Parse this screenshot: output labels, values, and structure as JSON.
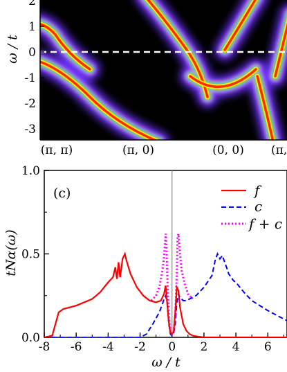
{
  "top_panel": {
    "type": "heatmap",
    "ylabel": "ω / t",
    "ylim": [
      -3,
      2
    ],
    "y_ticks": [
      "2",
      "1",
      "0",
      "-1",
      "-2",
      "-3"
    ],
    "x_tick_labels": [
      "(π, π)",
      "(π, 0)",
      "(0, 0)",
      "(π,"
    ],
    "zero_line": "dashed white at ω = 0",
    "colors": {
      "background": "#000000",
      "ridge": "#ff2a00",
      "halo": "#7a3cff"
    }
  },
  "chart_data": {
    "type": "line",
    "panel_label": "(c)",
    "xlabel": "ω / t",
    "ylabel": "tNα(ω)",
    "xlim": [
      -8,
      7.2
    ],
    "ylim": [
      0,
      1
    ],
    "x_ticks": [
      "-8",
      "-6",
      "-4",
      "-2",
      "0",
      "2",
      "4",
      "6"
    ],
    "y_ticks": [
      "0.0",
      "0.5",
      "1.0"
    ],
    "legend": [
      "f",
      "c",
      "f + c"
    ],
    "legend_position": "top-right",
    "series": [
      {
        "name": "f",
        "color": "#ff0000",
        "style": "solid",
        "x": [
          -8,
          -7.5,
          -7.3,
          -7.1,
          -6.8,
          -6,
          -5,
          -4.5,
          -4,
          -3.7,
          -3.55,
          -3.45,
          -3.35,
          -3.25,
          -3.1,
          -2.95,
          -2.85,
          -2.6,
          -2.2,
          -1.8,
          -1.4,
          -1.0,
          -0.7,
          -0.5,
          -0.4,
          -0.3,
          -0.2,
          -0.1,
          0,
          0.1,
          0.2,
          0.3,
          0.4,
          0.5,
          0.7,
          0.9,
          1.1,
          1.3,
          1.6,
          2,
          3,
          4,
          5,
          6,
          7.2
        ],
        "y": [
          0,
          0.01,
          0.08,
          0.15,
          0.17,
          0.19,
          0.23,
          0.27,
          0.33,
          0.36,
          0.42,
          0.35,
          0.45,
          0.36,
          0.47,
          0.5,
          0.46,
          0.38,
          0.3,
          0.25,
          0.22,
          0.21,
          0.22,
          0.26,
          0.31,
          0.2,
          0.09,
          0.03,
          0.02,
          0.03,
          0.15,
          0.3,
          0.28,
          0.18,
          0.08,
          0.04,
          0.02,
          0.01,
          0.005,
          0,
          0,
          0,
          0,
          0,
          0
        ]
      },
      {
        "name": "c",
        "color": "#0000ff",
        "style": "dashed",
        "x": [
          -8,
          -4,
          -2,
          -1.6,
          -1.2,
          -0.8,
          -0.6,
          -0.5,
          -0.4,
          -0.3,
          -0.2,
          -0.1,
          0,
          0.1,
          0.2,
          0.3,
          0.4,
          0.5,
          0.7,
          0.9,
          1.1,
          1.5,
          2,
          2.5,
          2.7,
          2.85,
          3.0,
          3.15,
          3.3,
          3.45,
          3.55,
          3.7,
          3.85,
          4,
          4.5,
          5,
          6,
          7.2
        ],
        "y": [
          0,
          0,
          0,
          0.02,
          0.08,
          0.15,
          0.2,
          0.23,
          0.25,
          0.21,
          0.08,
          0.02,
          0.01,
          0.02,
          0.08,
          0.21,
          0.26,
          0.24,
          0.22,
          0.22,
          0.23,
          0.25,
          0.3,
          0.37,
          0.46,
          0.5,
          0.47,
          0.49,
          0.45,
          0.41,
          0.38,
          0.36,
          0.34,
          0.33,
          0.27,
          0.22,
          0.16,
          0.1
        ]
      },
      {
        "name": "f + c",
        "color": "#ff00ff",
        "style": "dotted",
        "x": [
          -1.3,
          -1.0,
          -0.8,
          -0.6,
          -0.5,
          -0.4,
          -0.35,
          -0.3,
          -0.2,
          -0.1,
          0,
          0.1,
          0.2,
          0.3,
          0.35,
          0.4,
          0.5,
          0.6,
          0.8,
          1.0,
          1.3
        ],
        "y": [
          0.22,
          0.25,
          0.3,
          0.4,
          0.48,
          0.62,
          0.55,
          0.38,
          0.13,
          0.03,
          0.02,
          0.03,
          0.13,
          0.38,
          0.6,
          0.62,
          0.5,
          0.4,
          0.32,
          0.26,
          0.23
        ]
      }
    ]
  }
}
